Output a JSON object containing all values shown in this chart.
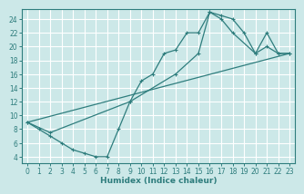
{
  "title": "",
  "xlabel": "Humidex (Indice chaleur)",
  "bg_color": "#cce8e8",
  "grid_color": "#ffffff",
  "line_color": "#2e7d7d",
  "xlim": [
    -0.5,
    23.5
  ],
  "ylim": [
    3,
    25.5
  ],
  "xticks": [
    0,
    1,
    2,
    3,
    4,
    5,
    6,
    7,
    8,
    9,
    10,
    11,
    12,
    13,
    14,
    15,
    16,
    17,
    18,
    19,
    20,
    21,
    22,
    23
  ],
  "yticks": [
    4,
    6,
    8,
    10,
    12,
    14,
    16,
    18,
    20,
    22,
    24
  ],
  "line1_x": [
    0,
    1,
    2,
    3,
    4,
    5,
    6,
    7,
    8,
    9,
    10,
    11,
    12,
    13,
    14,
    15,
    16,
    17,
    18,
    19,
    20,
    21,
    22,
    23
  ],
  "line1_y": [
    9,
    8,
    7,
    6,
    5,
    4.5,
    4,
    4,
    8,
    12,
    15,
    16,
    19,
    19.5,
    22,
    22,
    25,
    24.5,
    24,
    22,
    19,
    20,
    19,
    19
  ],
  "line2_x": [
    0,
    2,
    9,
    13,
    15,
    16,
    17,
    18,
    20,
    21,
    22,
    23
  ],
  "line2_y": [
    9,
    7.5,
    12,
    16,
    19,
    25,
    24,
    22,
    19,
    22,
    19,
    19
  ],
  "line3_x": [
    0,
    23
  ],
  "line3_y": [
    9,
    19
  ]
}
